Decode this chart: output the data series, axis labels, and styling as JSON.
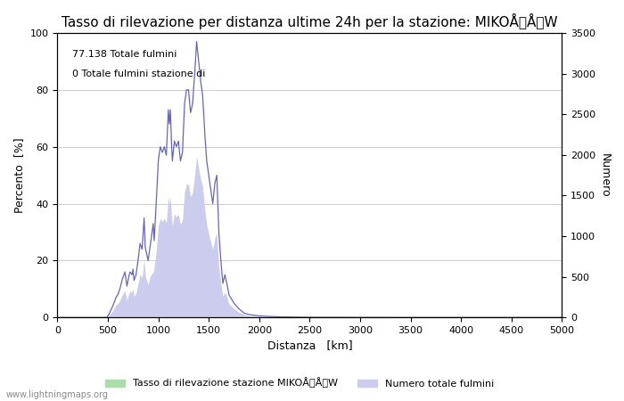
{
  "title": "Tasso di rilevazione per distanza ultime 24h per la stazione: MIKOÅÅW",
  "xlabel": "Distanza   [km]",
  "ylabel_left": "Percento  [%]",
  "ylabel_right": "Numero",
  "annotation_line1": "77.138 Totale fulmini",
  "annotation_line2": "0 Totale fulmini stazione di",
  "legend_label1": "Tasso di rilevazione stazione MIKOÅÅW",
  "legend_label2": "Numero totale fulmini",
  "watermark": "www.lightningmaps.org",
  "xlim": [
    0,
    5000
  ],
  "ylim_left": [
    0,
    100
  ],
  "ylim_right": [
    0,
    3500
  ],
  "xticks": [
    0,
    500,
    1000,
    1500,
    2000,
    2500,
    3000,
    3500,
    4000,
    4500,
    5000
  ],
  "yticks_left": [
    0,
    20,
    40,
    60,
    80,
    100
  ],
  "yticks_right": [
    0,
    500,
    1000,
    1500,
    2000,
    2500,
    3000,
    3500
  ],
  "line_color": "#6666bb",
  "fill_blue_color": "#ccccee",
  "fill_green_color": "#aaddaa",
  "background_color": "#ffffff",
  "grid_color": "#cccccc",
  "title_fontsize": 11,
  "axis_fontsize": 9,
  "tick_fontsize": 8,
  "keypoints_dist": [
    0,
    490,
    500,
    510,
    550,
    580,
    600,
    620,
    640,
    660,
    670,
    690,
    700,
    720,
    740,
    750,
    760,
    780,
    800,
    820,
    840,
    860,
    870,
    880,
    900,
    920,
    950,
    960,
    980,
    1000,
    1020,
    1040,
    1060,
    1080,
    1100,
    1110,
    1120,
    1130,
    1140,
    1160,
    1180,
    1200,
    1220,
    1240,
    1260,
    1280,
    1300,
    1320,
    1340,
    1360,
    1380,
    1400,
    1420,
    1440,
    1460,
    1480,
    1500,
    1520,
    1540,
    1560,
    1580,
    1600,
    1620,
    1640,
    1660,
    1680,
    1700,
    1750,
    1800,
    1850,
    1900,
    2000,
    2200,
    2500,
    3000,
    5000
  ],
  "keypoints_pct": [
    0,
    0,
    0.5,
    1.0,
    4.0,
    7.0,
    8.0,
    10.0,
    13.0,
    15.0,
    16.0,
    11.0,
    13.0,
    16.0,
    15.0,
    17.0,
    13.0,
    15.0,
    20.0,
    26.0,
    24.0,
    35.0,
    25.0,
    23.0,
    20.0,
    25.0,
    33.0,
    27.0,
    40.0,
    55.0,
    60.0,
    58.0,
    60.0,
    57.0,
    73.0,
    68.0,
    73.0,
    62.0,
    55.0,
    62.0,
    60.0,
    62.0,
    55.0,
    58.0,
    75.0,
    80.0,
    80.0,
    72.0,
    75.0,
    85.0,
    97.0,
    90.0,
    83.0,
    78.0,
    65.0,
    55.0,
    50.0,
    45.0,
    40.0,
    47.0,
    50.0,
    30.0,
    20.0,
    12.0,
    15.0,
    12.0,
    8.0,
    5.0,
    3.0,
    1.5,
    1.0,
    0.5,
    0.2,
    0.05,
    0.01,
    0
  ],
  "keypoints_num": [
    0,
    0,
    15,
    30,
    80,
    150,
    170,
    210,
    270,
    310,
    330,
    210,
    260,
    325,
    310,
    345,
    260,
    300,
    410,
    530,
    490,
    720,
    550,
    470,
    410,
    510,
    555,
    615,
    820,
    1120,
    1220,
    1180,
    1220,
    1160,
    1490,
    1390,
    1490,
    1270,
    1130,
    1270,
    1240,
    1270,
    1140,
    1200,
    1540,
    1640,
    1640,
    1480,
    1540,
    1740,
    1980,
    1840,
    1700,
    1610,
    1340,
    1140,
    1030,
    930,
    840,
    970,
    1040,
    620,
    420,
    260,
    310,
    250,
    165,
    110,
    65,
    35,
    20,
    10,
    4,
    1,
    0,
    0
  ]
}
